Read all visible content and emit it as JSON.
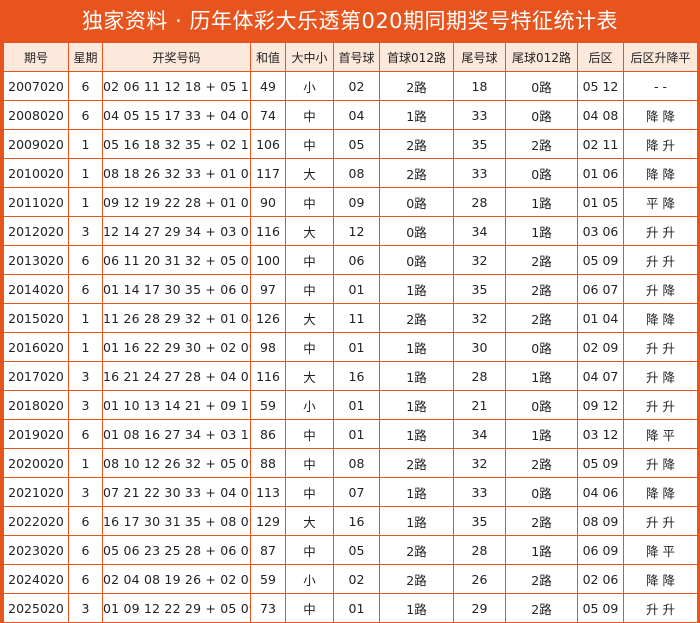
{
  "title": "独家资料 · 历年体彩大乐透第020期同期奖号特征统计表",
  "headers": [
    "期号",
    "星期",
    "开奖号码",
    "和值",
    "大中小",
    "首号球",
    "首球012路",
    "尾号球",
    "尾球012路",
    "后区",
    "后区升降平"
  ],
  "rows": [
    [
      "2007020",
      "6",
      "02 06 11 12 18 + 05 12",
      "49",
      "小",
      "02",
      "2路",
      "18",
      "0路",
      "05 12",
      "- -"
    ],
    [
      "2008020",
      "6",
      "04 05 15 17 33 + 04 08",
      "74",
      "中",
      "04",
      "1路",
      "33",
      "0路",
      "04 08",
      "降 降"
    ],
    [
      "2009020",
      "1",
      "05 16 18 32 35 + 02 11",
      "106",
      "中",
      "05",
      "2路",
      "35",
      "2路",
      "02 11",
      "降 升"
    ],
    [
      "2010020",
      "1",
      "08 18 26 32 33 + 01 06",
      "117",
      "大",
      "08",
      "2路",
      "33",
      "0路",
      "01 06",
      "降 降"
    ],
    [
      "2011020",
      "1",
      "09 12 19 22 28 + 01 05",
      "90",
      "中",
      "09",
      "0路",
      "28",
      "1路",
      "01 05",
      "平 降"
    ],
    [
      "2012020",
      "3",
      "12 14 27 29 34 + 03 06",
      "116",
      "大",
      "12",
      "0路",
      "34",
      "1路",
      "03 06",
      "升 升"
    ],
    [
      "2013020",
      "6",
      "06 11 20 31 32 + 05 09",
      "100",
      "中",
      "06",
      "0路",
      "32",
      "2路",
      "05 09",
      "升 升"
    ],
    [
      "2014020",
      "6",
      "01 14 17 30 35 + 06 07",
      "97",
      "中",
      "01",
      "1路",
      "35",
      "2路",
      "06 07",
      "升 降"
    ],
    [
      "2015020",
      "1",
      "11 26 28 29 32 + 01 04",
      "126",
      "大",
      "11",
      "2路",
      "32",
      "2路",
      "01 04",
      "降 降"
    ],
    [
      "2016020",
      "1",
      "01 16 22 29 30 + 02 09",
      "98",
      "中",
      "01",
      "1路",
      "30",
      "0路",
      "02 09",
      "升 升"
    ],
    [
      "2017020",
      "3",
      "16 21 24 27 28 + 04 07",
      "116",
      "大",
      "16",
      "1路",
      "28",
      "1路",
      "04 07",
      "升 降"
    ],
    [
      "2018020",
      "3",
      "01 10 13 14 21 + 09 12",
      "59",
      "小",
      "01",
      "1路",
      "21",
      "0路",
      "09 12",
      "升 升"
    ],
    [
      "2019020",
      "6",
      "01 08 16 27 34 + 03 12",
      "86",
      "中",
      "01",
      "1路",
      "34",
      "1路",
      "03 12",
      "降 平"
    ],
    [
      "2020020",
      "1",
      "08 10 12 26 32 + 05 09",
      "88",
      "中",
      "08",
      "2路",
      "32",
      "2路",
      "05 09",
      "升 降"
    ],
    [
      "2021020",
      "3",
      "07 21 22 30 33 + 04 06",
      "113",
      "中",
      "07",
      "1路",
      "33",
      "0路",
      "04 06",
      "降 降"
    ],
    [
      "2022020",
      "6",
      "16 17 30 31 35 + 08 09",
      "129",
      "大",
      "16",
      "1路",
      "35",
      "2路",
      "08 09",
      "升 升"
    ],
    [
      "2023020",
      "6",
      "05 06 23 25 28 + 06 09",
      "87",
      "中",
      "05",
      "2路",
      "28",
      "1路",
      "06 09",
      "降 平"
    ],
    [
      "2024020",
      "6",
      "02 04 08 19 26 + 02 06",
      "59",
      "小",
      "02",
      "2路",
      "26",
      "2路",
      "02 06",
      "降 降"
    ],
    [
      "2025020",
      "3",
      "01 09 12 22 29 + 05 09",
      "73",
      "中",
      "01",
      "1路",
      "29",
      "2路",
      "05 09",
      "升 升"
    ]
  ]
}
